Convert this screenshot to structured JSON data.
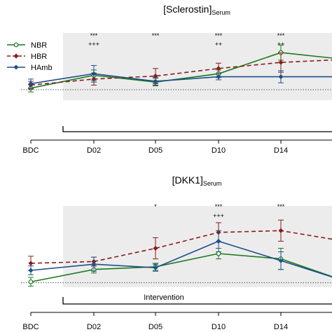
{
  "chart_data": [
    {
      "type": "line",
      "title": "[Sclerostin]",
      "title_sub": "Serum",
      "categories": [
        "BDC",
        "D02",
        "D05",
        "D10",
        "D14",
        ""
      ],
      "ylim": [
        0,
        1
      ],
      "baseline": 0.25,
      "intervention_start": "D02",
      "intervention_label": "",
      "legend": {
        "placement": "top-left",
        "entries": [
          "NBR",
          "HBR",
          "HAmb"
        ]
      },
      "series": [
        {
          "name": "NBR",
          "color": "#1a7a1a",
          "dash": false,
          "marker": "open-circle",
          "values": [
            0.27,
            0.44,
            0.35,
            0.46,
            0.74,
            0.65
          ],
          "err": [
            0.05,
            0.07,
            0.05,
            0.05,
            0.1,
            null
          ]
        },
        {
          "name": "HBR",
          "color": "#8b1a1a",
          "dash": true,
          "marker": "diamond",
          "values": [
            0.31,
            0.39,
            0.43,
            0.53,
            0.61,
            0.65
          ],
          "err": [
            0.05,
            0.08,
            0.1,
            0.07,
            0.13,
            null
          ]
        },
        {
          "name": "HAmb",
          "color": "#1f4e8c",
          "dash": false,
          "marker": "diamond",
          "values": [
            0.33,
            0.46,
            0.36,
            0.42,
            0.42,
            0.42
          ],
          "err": [
            0.06,
            0.11,
            0.05,
            0.04,
            0.08,
            null
          ]
        }
      ],
      "significance": [
        {
          "category": "D02",
          "lines": [
            "***",
            "+++"
          ]
        },
        {
          "category": "D05",
          "lines": [
            "***"
          ]
        },
        {
          "category": "D10",
          "lines": [
            "***",
            "++"
          ]
        },
        {
          "category": "D14",
          "lines": [
            "***",
            "++"
          ]
        }
      ]
    },
    {
      "type": "line",
      "title": "[DKK1]",
      "title_sub": "Serum",
      "categories": [
        "BDC",
        "D02",
        "D05",
        "D10",
        "D14",
        ""
      ],
      "ylim": [
        0,
        1
      ],
      "baseline": 0.13,
      "intervention_start": "D02",
      "intervention_label": "Intervention",
      "legend": null,
      "series": [
        {
          "name": "NBR",
          "color": "#1a7a1a",
          "dash": false,
          "marker": "open-circle",
          "values": [
            0.14,
            0.28,
            0.31,
            0.46,
            0.4,
            0.15
          ],
          "err": [
            0.05,
            0.04,
            0.04,
            0.06,
            0.12,
            null
          ]
        },
        {
          "name": "HBR",
          "color": "#8b1a1a",
          "dash": true,
          "marker": "diamond",
          "values": [
            0.35,
            0.37,
            0.52,
            0.7,
            0.72,
            0.6
          ],
          "err": [
            0.08,
            0.05,
            0.12,
            0.11,
            0.12,
            null
          ]
        },
        {
          "name": "HAmb",
          "color": "#1f4e8c",
          "dash": false,
          "marker": "diamond",
          "values": [
            0.27,
            0.34,
            0.3,
            0.6,
            0.38,
            0.15
          ],
          "err": [
            0.05,
            0.08,
            0.04,
            0.12,
            0.1,
            null
          ]
        }
      ],
      "significance": [
        {
          "category": "D05",
          "lines": [
            "*"
          ]
        },
        {
          "category": "D10",
          "lines": [
            "***",
            "+++"
          ]
        },
        {
          "category": "D14",
          "lines": [
            "***"
          ]
        }
      ]
    }
  ]
}
